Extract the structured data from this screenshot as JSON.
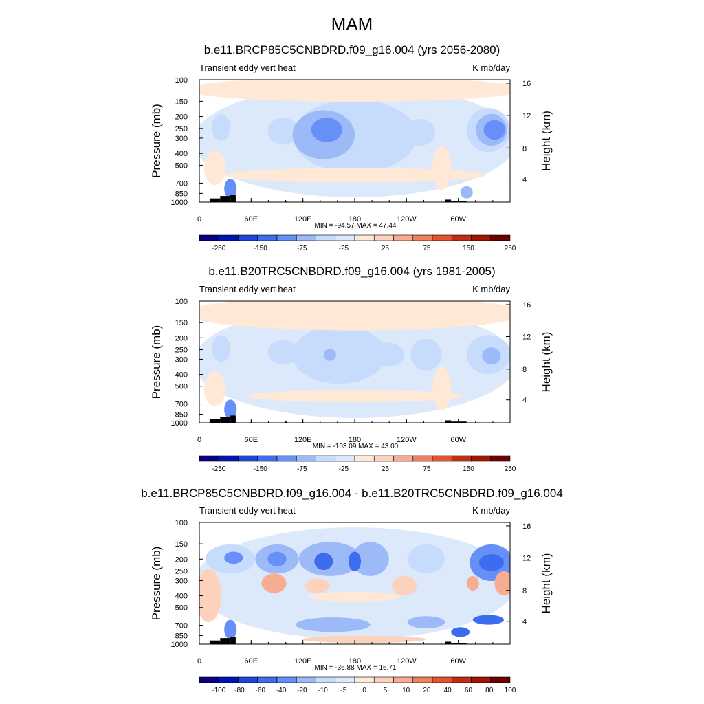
{
  "figure_title": "MAM",
  "colors": {
    "panel_scale": [
      "#08007f",
      "#0014b3",
      "#1e46d9",
      "#3c6cf0",
      "#6690f8",
      "#9cb9f8",
      "#c7dcfc",
      "#dce9fb",
      "#ffe9d6",
      "#fcd2bd",
      "#f7ad92",
      "#f07f5c",
      "#e4522e",
      "#c52b11",
      "#9e1500",
      "#6e0000"
    ],
    "dry_land": "#000000"
  },
  "chart_data": [
    {
      "type": "contour",
      "title": "b.e11.BRCP85C5CNBDRD.f09_g16.004 (yrs 2056-2080)",
      "left_label": "Transient eddy vert heat",
      "units": "K mb/day",
      "ylabel": "Pressure (mb)",
      "y2label": "Height (km)",
      "xticks": [
        "0",
        "60E",
        "120E",
        "180",
        "120W",
        "60W"
      ],
      "yticks": [
        "100",
        "150",
        "200",
        "250",
        "300",
        "400",
        "500",
        "700",
        "850",
        "1000"
      ],
      "y2ticks": [
        "16",
        "12",
        "8",
        "4"
      ],
      "stats": "MIN = -94.57  MAX =  47.44",
      "colorbar_labels": [
        "-250",
        "-150",
        "-75",
        "-25",
        "25",
        "75",
        "150",
        "250"
      ],
      "colorbar_levels": 16
    },
    {
      "type": "contour",
      "title": "b.e11.B20TRC5CNBDRD.f09_g16.004 (yrs 1981-2005)",
      "left_label": "Transient eddy vert heat",
      "units": "K mb/day",
      "ylabel": "Pressure (mb)",
      "y2label": "Height (km)",
      "xticks": [
        "0",
        "60E",
        "120E",
        "180",
        "120W",
        "60W"
      ],
      "yticks": [
        "100",
        "150",
        "200",
        "250",
        "300",
        "400",
        "500",
        "700",
        "850",
        "1000"
      ],
      "y2ticks": [
        "16",
        "12",
        "8",
        "4"
      ],
      "stats": "MIN = -103.09  MAX =  43.00",
      "colorbar_labels": [
        "-250",
        "-150",
        "-75",
        "-25",
        "25",
        "75",
        "150",
        "250"
      ],
      "colorbar_levels": 16
    },
    {
      "type": "contour",
      "title": "b.e11.BRCP85C5CNBDRD.f09_g16.004 - b.e11.B20TRC5CNBDRD.f09_g16.004",
      "left_label": "Transient eddy vert heat",
      "units": "K mb/day",
      "ylabel": "Pressure (mb)",
      "y2label": "Height (km)",
      "xticks": [
        "0",
        "60E",
        "120E",
        "180",
        "120W",
        "60W"
      ],
      "yticks": [
        "100",
        "150",
        "200",
        "250",
        "300",
        "400",
        "500",
        "700",
        "850",
        "1000"
      ],
      "y2ticks": [
        "16",
        "12",
        "8",
        "4"
      ],
      "stats": "MIN = -36.88  MAX =  16.71",
      "colorbar_labels": [
        "-100",
        "-80",
        "-60",
        "-40",
        "-20",
        "-10",
        "-5",
        "0",
        "5",
        "10",
        "20",
        "40",
        "60",
        "80",
        "100"
      ],
      "colorbar_levels": 16
    }
  ]
}
